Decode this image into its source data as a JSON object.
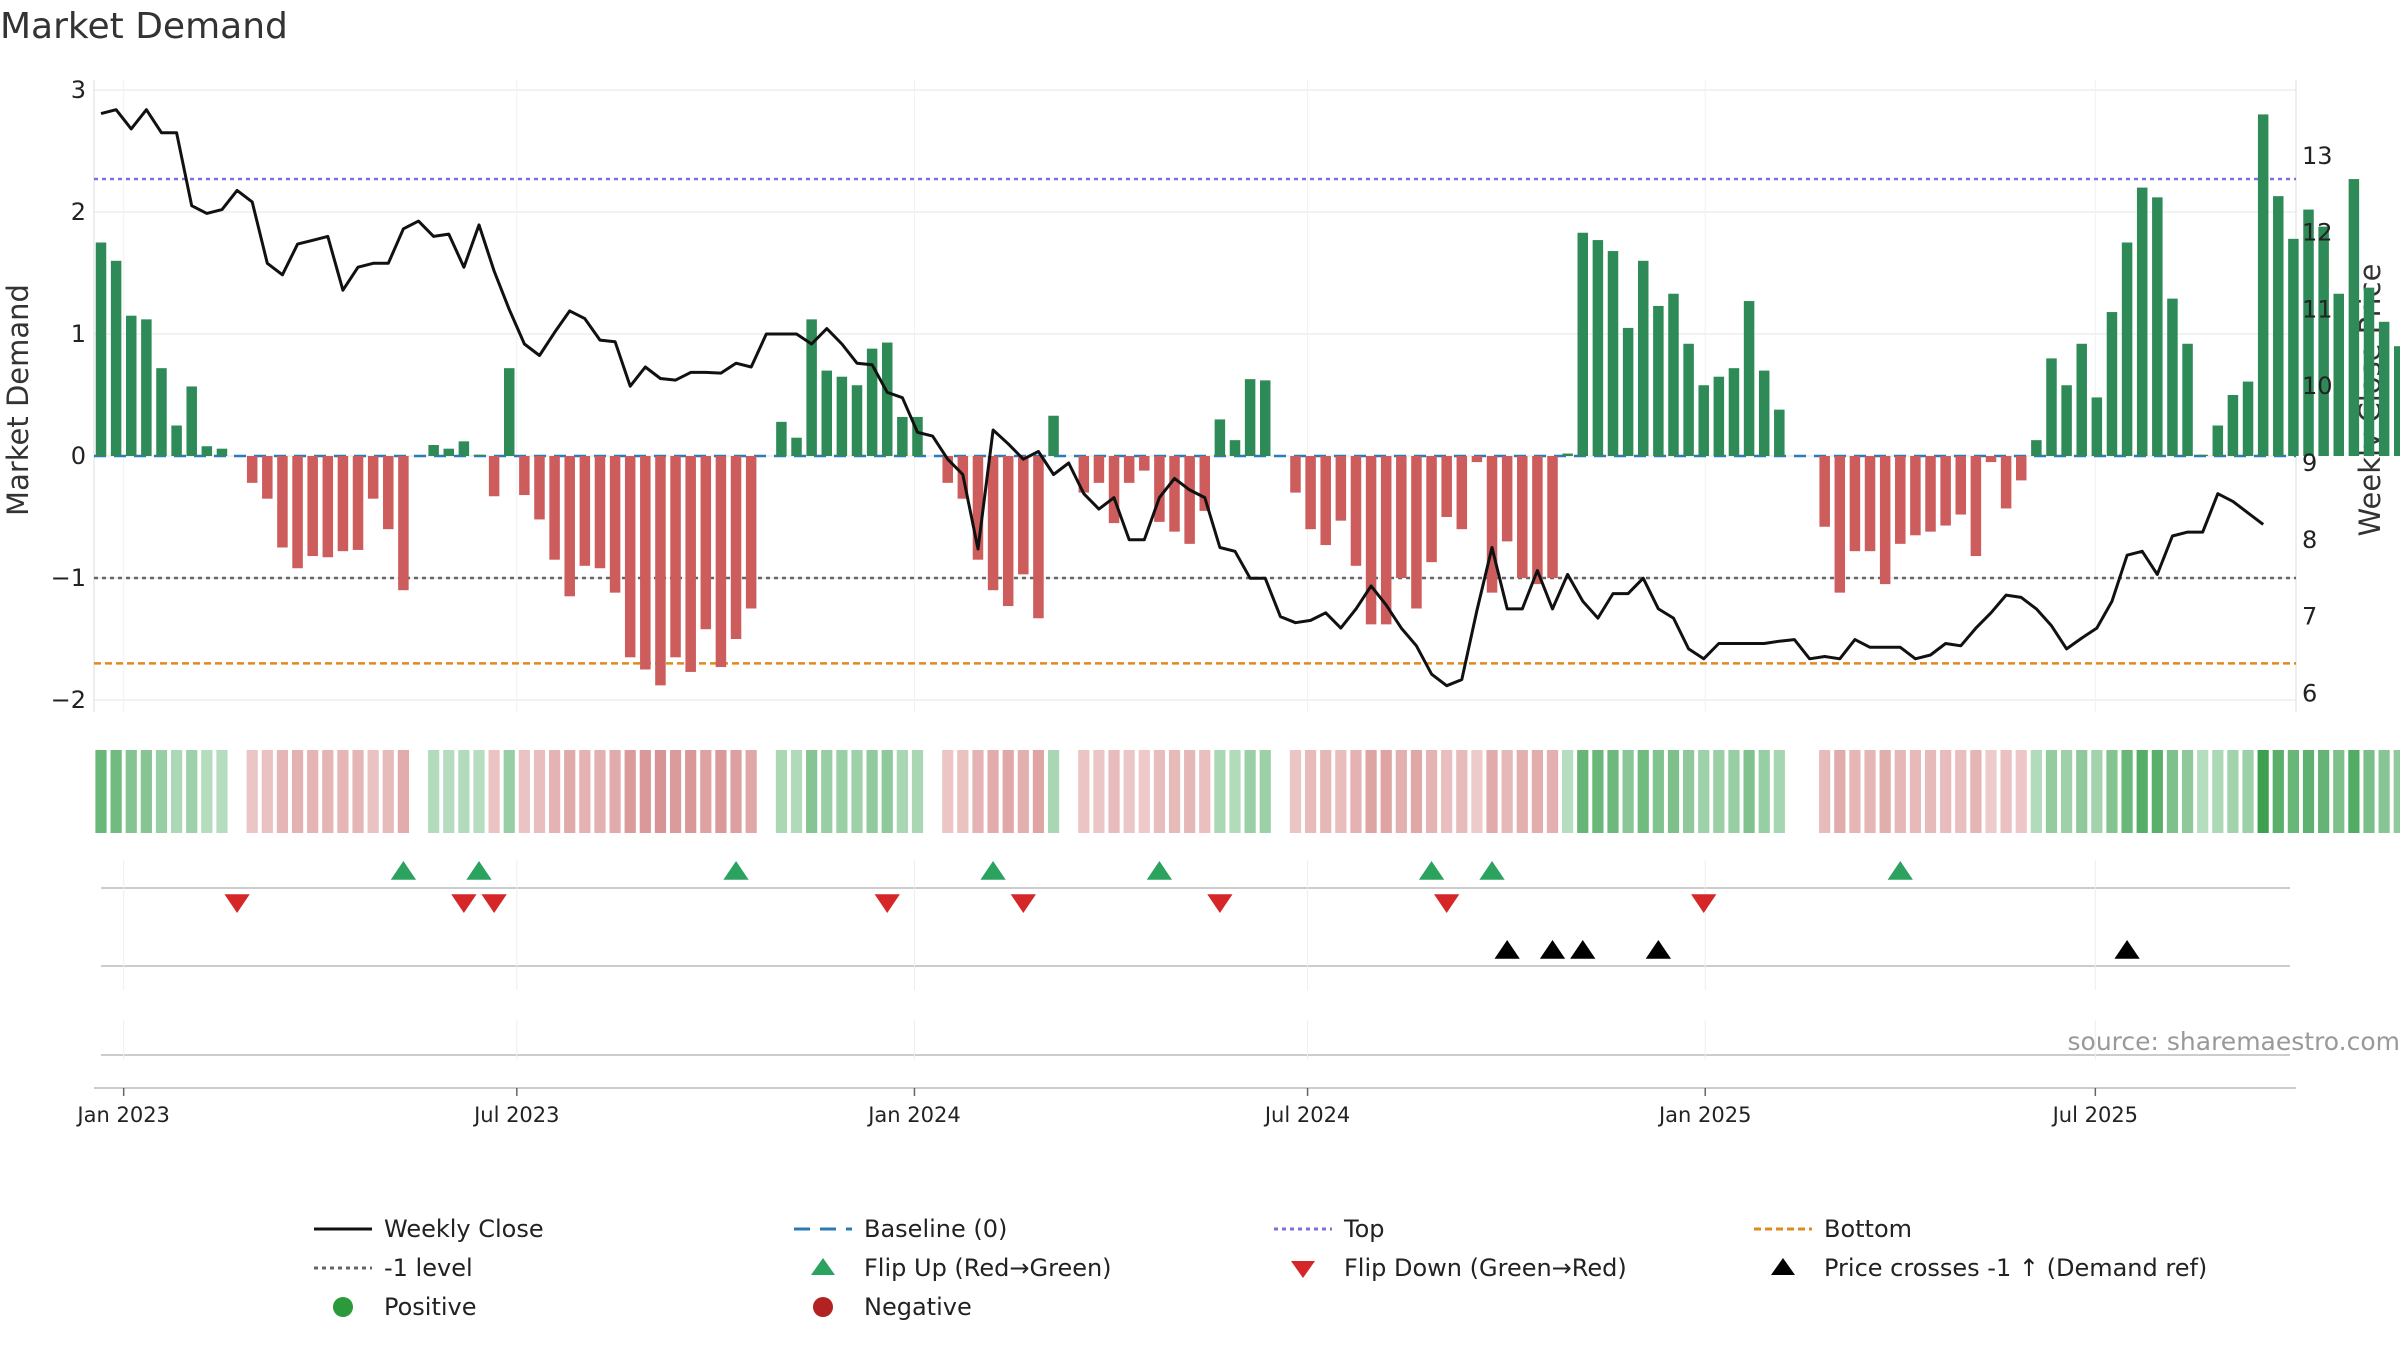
{
  "chart_data": {
    "type": "bar",
    "title": "Market Demand",
    "ylabel_left": "Market Demand",
    "ylabel_right": "Weekly Close Price",
    "ylim_left": [
      -2.2,
      3.0
    ],
    "ylim_right": [
      5.8,
      13.9
    ],
    "yticks_left": [
      3,
      2,
      1,
      0,
      -1,
      -2
    ],
    "ytick_labels_left": [
      "3",
      "2",
      "1",
      "0",
      "−1",
      "−2"
    ],
    "yticks_right": [
      13,
      12,
      11,
      10,
      9,
      8,
      7,
      6
    ],
    "ytick_labels_right": [
      "13",
      "12",
      "11",
      "10",
      "9",
      "8",
      "7",
      "6"
    ],
    "x_ticks": [
      {
        "label": "Jan 2023",
        "week": 1.5
      },
      {
        "label": "Jul 2023",
        "week": 27.5
      },
      {
        "label": "Jan 2024",
        "week": 53.8
      },
      {
        "label": "Jul 2024",
        "week": 79.8
      },
      {
        "label": "Jan 2025",
        "week": 106.1
      },
      {
        "label": "Jul 2025",
        "week": 131.9
      }
    ],
    "reference_lines": [
      {
        "name": "Top",
        "value": 2.27,
        "color": "#7b72d9",
        "dash": "dotted"
      },
      {
        "name": "-1 level",
        "value": -1.0,
        "color": "#666666",
        "dash": "dotted"
      },
      {
        "name": "Bottom",
        "value": -1.7,
        "color": "#e08a1e",
        "dash": "dashed"
      },
      {
        "name": "Baseline (0)",
        "value": 0,
        "color": "#2a7ab8",
        "dash": "dashed"
      }
    ],
    "demand_values": [
      1.75,
      1.6,
      1.15,
      1.12,
      0.72,
      0.25,
      0.57,
      0.08,
      0.06,
      0.0,
      -0.22,
      -0.35,
      -0.75,
      -0.92,
      -0.82,
      -0.83,
      -0.78,
      -0.77,
      -0.35,
      -0.6,
      -1.1,
      0.0,
      0.09,
      0.06,
      0.12,
      0.01,
      -0.33,
      0.72,
      -0.32,
      -0.52,
      -0.85,
      -1.15,
      -0.9,
      -0.92,
      -1.12,
      -1.65,
      -1.75,
      -1.88,
      -1.65,
      -1.77,
      -1.42,
      -1.73,
      -1.5,
      -1.25,
      0.0,
      0.28,
      0.15,
      1.12,
      0.7,
      0.65,
      0.58,
      0.88,
      0.93,
      0.32,
      0.32,
      0.0,
      -0.22,
      -0.35,
      -0.85,
      -1.1,
      -1.23,
      -0.97,
      -1.33,
      0.33,
      0.0,
      -0.3,
      -0.22,
      -0.55,
      -0.22,
      -0.12,
      -0.54,
      -0.62,
      -0.72,
      -0.45,
      0.3,
      0.13,
      0.63,
      0.62,
      0.0,
      -0.3,
      -0.6,
      -0.73,
      -0.53,
      -0.9,
      -1.38,
      -1.38,
      -1.0,
      -1.25,
      -0.87,
      -0.5,
      -0.6,
      -0.05,
      -1.12,
      -0.7,
      -1.0,
      -1.05,
      -1.0,
      0.02,
      1.83,
      1.77,
      1.68,
      1.05,
      1.6,
      1.23,
      1.33,
      0.92,
      0.58,
      0.65,
      0.72,
      1.27,
      0.7,
      0.38,
      0.0,
      0.0,
      -0.58,
      -1.12,
      -0.78,
      -0.78,
      -1.05,
      -0.72,
      -0.65,
      -0.62,
      -0.57,
      -0.48,
      -0.82,
      -0.05,
      -0.43,
      -0.2,
      0.13,
      0.8,
      0.58,
      0.92,
      0.48,
      1.18,
      1.75,
      2.2,
      2.12,
      1.29,
      0.92,
      0.01,
      0.25,
      0.5,
      0.61,
      2.8,
      2.13,
      1.78,
      2.02,
      1.88,
      1.33,
      2.27,
      1.38,
      1.1,
      0.9
    ],
    "price_values": [
      13.55,
      13.6,
      13.35,
      13.6,
      13.3,
      13.3,
      12.35,
      12.25,
      12.3,
      12.55,
      12.4,
      11.6,
      11.45,
      11.85,
      11.9,
      11.95,
      11.25,
      11.55,
      11.6,
      11.6,
      12.05,
      12.15,
      11.95,
      11.98,
      11.55,
      12.1,
      11.5,
      11.0,
      10.55,
      10.4,
      10.7,
      10.98,
      10.88,
      10.6,
      10.58,
      10.0,
      10.25,
      10.1,
      10.08,
      10.18,
      10.18,
      10.17,
      10.3,
      10.25,
      10.68,
      10.68,
      10.68,
      10.55,
      10.75,
      10.55,
      10.3,
      10.28,
      9.92,
      9.85,
      9.4,
      9.35,
      9.05,
      8.85,
      7.88,
      9.43,
      9.25,
      9.05,
      9.15,
      8.85,
      9.0,
      8.6,
      8.4,
      8.55,
      8.0,
      8.0,
      8.55,
      8.8,
      8.65,
      8.55,
      7.9,
      7.85,
      7.5,
      7.5,
      7.0,
      6.92,
      6.95,
      7.05,
      6.85,
      7.1,
      7.4,
      7.15,
      6.85,
      6.62,
      6.25,
      6.1,
      6.18,
      7.08,
      7.9,
      7.1,
      7.1,
      7.6,
      7.1,
      7.55,
      7.2,
      6.98,
      7.3,
      7.3,
      7.5,
      7.1,
      6.98,
      6.58,
      6.45,
      6.65,
      6.65,
      6.65,
      6.65,
      6.68,
      6.7,
      6.45,
      6.48,
      6.45,
      6.7,
      6.6,
      6.6,
      6.6,
      6.45,
      6.5,
      6.65,
      6.62,
      6.85,
      7.05,
      7.28,
      7.25,
      7.1,
      6.88,
      6.58,
      6.72,
      6.85,
      7.2,
      7.8,
      7.85,
      7.55,
      8.05,
      8.1,
      8.1,
      8.6,
      8.5,
      8.35,
      8.2
    ],
    "flip_up_weeks": [
      20,
      25,
      42,
      59,
      70,
      88,
      92,
      119
    ],
    "flip_down_weeks": [
      9,
      24,
      26,
      52,
      61,
      74,
      89,
      106
    ],
    "cross_weeks": [
      93,
      96,
      98,
      103,
      134
    ],
    "source": "source: sharemaestro.com",
    "legend": [
      {
        "label": "Weekly Close",
        "kind": "line",
        "color": "#111111"
      },
      {
        "label": "Baseline (0)",
        "kind": "dash",
        "color": "#2a7ab8"
      },
      {
        "label": "Top",
        "kind": "dot",
        "color": "#7b72d9"
      },
      {
        "label": "Bottom",
        "kind": "dash-fine",
        "color": "#e08a1e"
      },
      {
        "label": "-1 level",
        "kind": "dot",
        "color": "#666666"
      },
      {
        "label": "Flip Up (Red→Green)",
        "kind": "tri-up",
        "color": "#2ca25f"
      },
      {
        "label": "Flip Down (Green→Red)",
        "kind": "tri-down",
        "color": "#d62728"
      },
      {
        "label": "Price crosses -1 ↑ (Demand ref)",
        "kind": "tri-up",
        "color": "#000000"
      },
      {
        "label": "Positive",
        "kind": "circle",
        "color": "#2a9a3a"
      },
      {
        "label": "Negative",
        "kind": "circle",
        "color": "#b22222"
      }
    ],
    "colors": {
      "positive_bar": "#2e8b57",
      "negative_bar": "#cd5c5c",
      "price_line": "#111111",
      "flip_up": "#2ca25f",
      "flip_down": "#d62728",
      "cross": "#000000",
      "gridline": "#e6e6e6",
      "axis": "#cccccc"
    }
  }
}
